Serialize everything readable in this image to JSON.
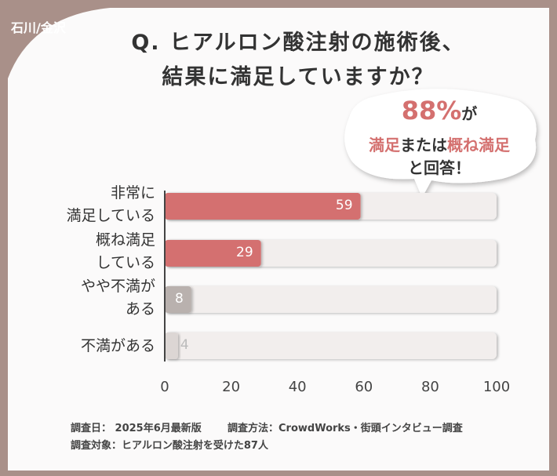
{
  "badge": "石川/金沢",
  "title_lines": [
    "Q. ヒアルロン酸注射の施術後、",
    "結果に満足していますか？"
  ],
  "callout": {
    "lines": [
      [
        {
          "text": "88%",
          "color": "#d4706f"
        },
        {
          "text": "が"
        }
      ],
      [
        {
          "text": "満足",
          "color": "#d4706f"
        },
        {
          "text": "または"
        },
        {
          "text": "概ね満足",
          "color": "#d4706f"
        }
      ],
      [
        {
          "text": "と回答！"
        }
      ]
    ]
  },
  "chart_data": {
    "type": "hbar",
    "categories": [
      "非常に\n満足している",
      "概ね満足\nしている",
      "やや不満が\nある",
      "不満がある"
    ],
    "values": [
      59,
      29,
      8,
      4
    ],
    "colors": [
      "#d4706f",
      "#d4706f",
      "#b9b1ae",
      "#dcd6d4"
    ],
    "xlim": [
      0,
      100
    ],
    "xticks": [
      0,
      20,
      40,
      60,
      80,
      100
    ]
  },
  "footer": {
    "lines": [
      [
        "調査日： 2025年6月最新版",
        "調査方法：CrowdWorks・街頭インタビュー調査"
      ],
      [
        "調査対象：ヒアルロン酸注射を受けた87人"
      ]
    ]
  }
}
